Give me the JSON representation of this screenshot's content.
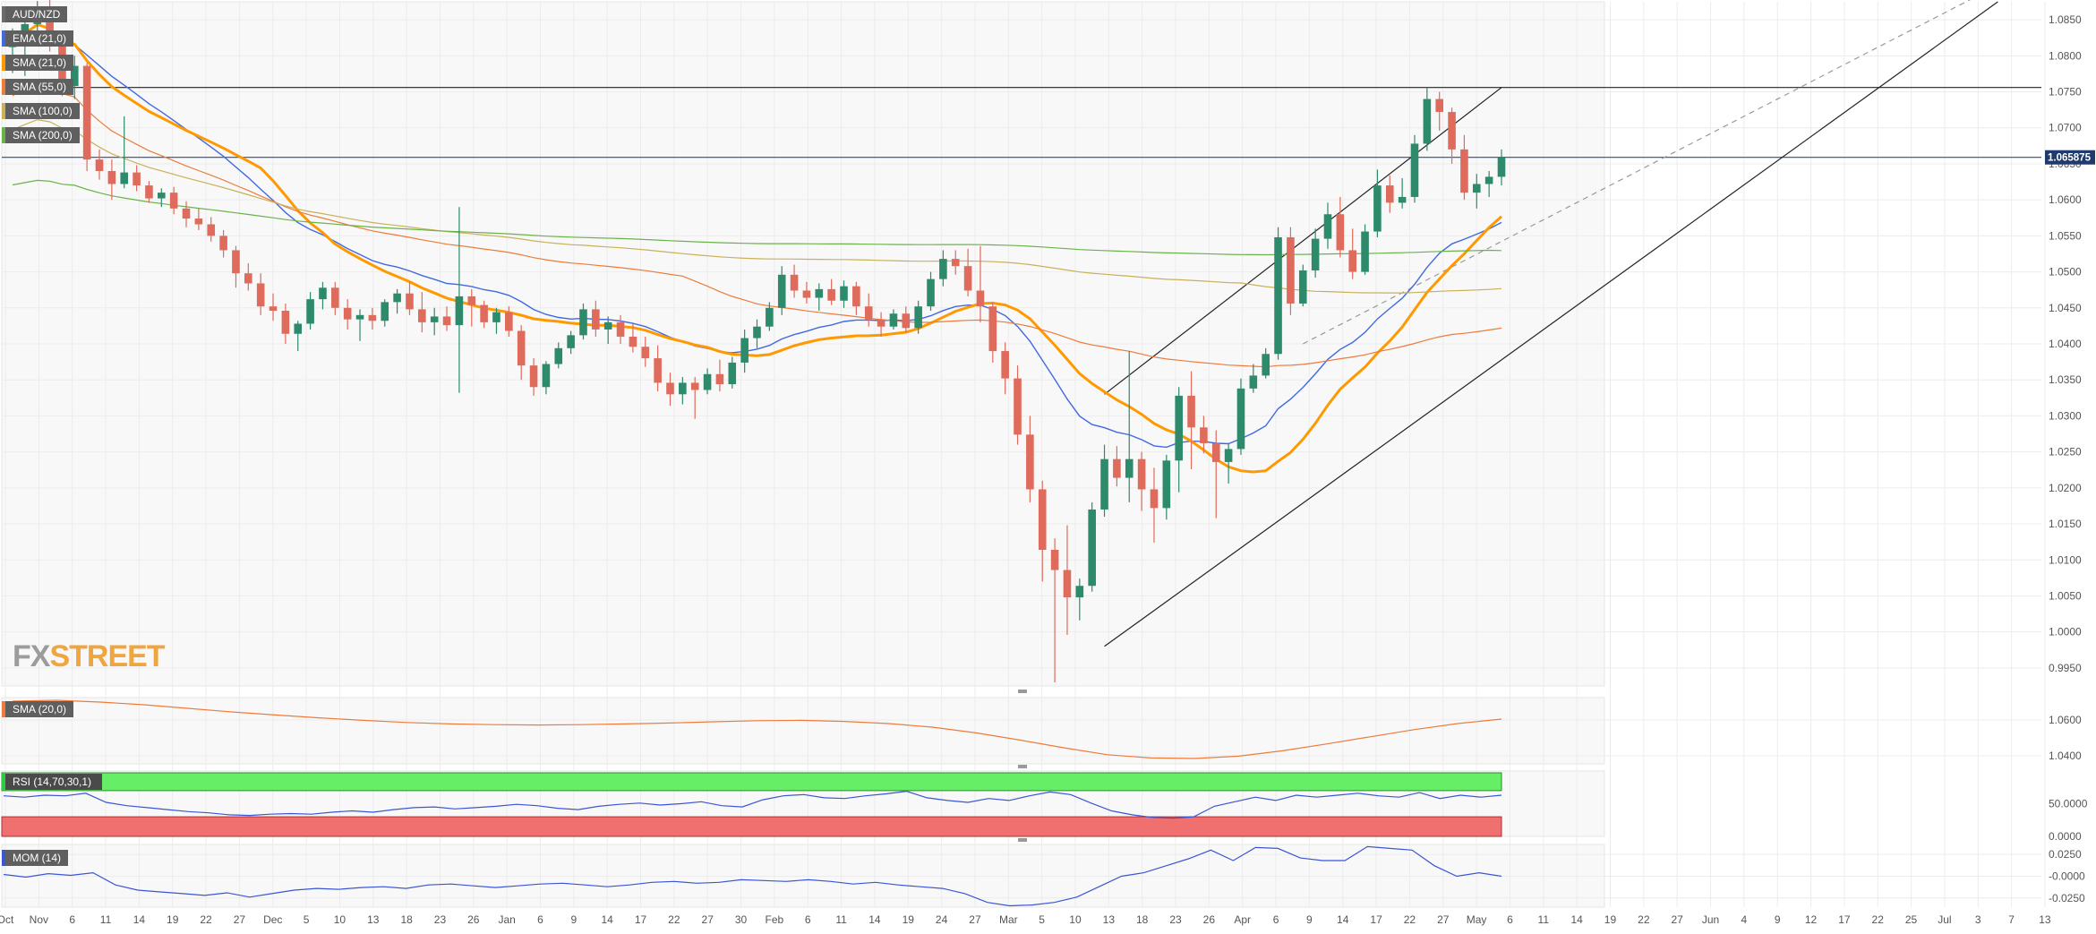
{
  "chart_data": [
    {
      "type": "candlestick",
      "symbol": "AUD/NZD",
      "last_price": "1.065875",
      "y_ticks": [
        "1.0850",
        "1.0800",
        "1.0750",
        "1.0700",
        "1.0650",
        "1.0600",
        "1.0550",
        "1.0500",
        "1.0450",
        "1.0400",
        "1.0350",
        "1.0300",
        "1.0250",
        "1.0200",
        "1.0150",
        "1.0100",
        "1.0050",
        "1.0000",
        "0.9950"
      ],
      "ylim": [
        0.9925,
        1.0875
      ],
      "x_ticks": [
        "Oct",
        "Nov",
        "6",
        "11",
        "14",
        "19",
        "22",
        "27",
        "Dec",
        "5",
        "10",
        "13",
        "18",
        "23",
        "26",
        "Jan",
        "6",
        "9",
        "14",
        "17",
        "22",
        "27",
        "30",
        "Feb",
        "6",
        "11",
        "14",
        "19",
        "24",
        "27",
        "Mar",
        "5",
        "10",
        "13",
        "18",
        "23",
        "26",
        "Apr",
        "6",
        "9",
        "14",
        "17",
        "22",
        "27",
        "May",
        "6",
        "11",
        "14",
        "19",
        "22",
        "27",
        "Jun",
        "4",
        "9",
        "12",
        "17",
        "22",
        "25",
        "Jul",
        "3",
        "7",
        "13"
      ],
      "indicators": [
        {
          "name": "EMA (21,0)",
          "color": "#4169e1"
        },
        {
          "name": "SMA (21,0)",
          "color": "#ff9900"
        },
        {
          "name": "SMA (55,0)",
          "color": "#ee7b3a"
        },
        {
          "name": "SMA (100,0)",
          "color": "#c9b05a"
        },
        {
          "name": "SMA (200,0)",
          "color": "#6ab34a"
        }
      ],
      "horizontal_levels": [
        1.0756,
        1.0659
      ],
      "candles": [
        [
          1.0812,
          1.0838,
          1.0776,
          1.0818
        ],
        [
          1.0818,
          1.0856,
          1.0772,
          1.0844
        ],
        [
          1.0844,
          1.0876,
          1.0822,
          1.0868
        ],
        [
          1.0868,
          1.0878,
          1.0806,
          1.0822
        ],
        [
          1.0822,
          1.083,
          1.0744,
          1.0758
        ],
        [
          1.0758,
          1.08,
          1.074,
          1.0786
        ],
        [
          1.0786,
          1.079,
          1.064,
          1.0656
        ],
        [
          1.0656,
          1.067,
          1.0628,
          1.064
        ],
        [
          1.064,
          1.0656,
          1.06,
          1.0622
        ],
        [
          1.0622,
          1.0716,
          1.0616,
          1.0638
        ],
        [
          1.0638,
          1.0648,
          1.0612,
          1.062
        ],
        [
          1.062,
          1.0626,
          1.0596,
          1.0602
        ],
        [
          1.0602,
          1.0616,
          1.059,
          1.061
        ],
        [
          1.061,
          1.0618,
          1.058,
          1.0588
        ],
        [
          1.0588,
          1.0598,
          1.0562,
          1.0574
        ],
        [
          1.0574,
          1.0588,
          1.0558,
          1.0566
        ],
        [
          1.0566,
          1.0576,
          1.0542,
          1.055
        ],
        [
          1.055,
          1.0558,
          1.052,
          1.053
        ],
        [
          1.053,
          1.0536,
          1.0478,
          1.0498
        ],
        [
          1.0498,
          1.0512,
          1.0474,
          1.0484
        ],
        [
          1.0484,
          1.0498,
          1.044,
          1.0452
        ],
        [
          1.0452,
          1.047,
          1.0432,
          1.0446
        ],
        [
          1.0446,
          1.0456,
          1.04,
          1.0414
        ],
        [
          1.0414,
          1.0432,
          1.039,
          1.0428
        ],
        [
          1.0428,
          1.0472,
          1.042,
          1.0462
        ],
        [
          1.0462,
          1.0486,
          1.0448,
          1.0478
        ],
        [
          1.0478,
          1.0486,
          1.044,
          1.045
        ],
        [
          1.045,
          1.0462,
          1.042,
          1.0434
        ],
        [
          1.0434,
          1.0448,
          1.0404,
          1.044
        ],
        [
          1.044,
          1.045,
          1.042,
          1.0432
        ],
        [
          1.0432,
          1.0462,
          1.0424,
          1.0458
        ],
        [
          1.0458,
          1.0476,
          1.0442,
          1.047
        ],
        [
          1.047,
          1.0486,
          1.044,
          1.0448
        ],
        [
          1.0448,
          1.0472,
          1.0416,
          1.043
        ],
        [
          1.043,
          1.045,
          1.0412,
          1.0438
        ],
        [
          1.0438,
          1.0452,
          1.0418,
          1.0426
        ],
        [
          1.0426,
          1.059,
          1.0332,
          1.0466
        ],
        [
          1.0466,
          1.0476,
          1.0424,
          1.0454
        ],
        [
          1.0454,
          1.046,
          1.0422,
          1.043
        ],
        [
          1.043,
          1.045,
          1.0414,
          1.0444
        ],
        [
          1.0444,
          1.0452,
          1.041,
          1.0418
        ],
        [
          1.0418,
          1.0426,
          1.035,
          1.037
        ],
        [
          1.037,
          1.038,
          1.0328,
          1.034
        ],
        [
          1.034,
          1.0376,
          1.033,
          1.0372
        ],
        [
          1.0372,
          1.0402,
          1.0366,
          1.0394
        ],
        [
          1.0394,
          1.0418,
          1.0386,
          1.0412
        ],
        [
          1.0412,
          1.0456,
          1.0406,
          1.0448
        ],
        [
          1.0448,
          1.046,
          1.041,
          1.042
        ],
        [
          1.042,
          1.0438,
          1.04,
          1.043
        ],
        [
          1.043,
          1.044,
          1.04,
          1.041
        ],
        [
          1.041,
          1.0428,
          1.0388,
          1.0396
        ],
        [
          1.0396,
          1.041,
          1.0368,
          1.038
        ],
        [
          1.038,
          1.0398,
          1.0334,
          1.0346
        ],
        [
          1.0346,
          1.036,
          1.0314,
          1.033
        ],
        [
          1.033,
          1.0354,
          1.0316,
          1.0346
        ],
        [
          1.0346,
          1.0354,
          1.0296,
          1.0336
        ],
        [
          1.0336,
          1.0366,
          1.033,
          1.0358
        ],
        [
          1.0358,
          1.0378,
          1.0334,
          1.0344
        ],
        [
          1.0344,
          1.0382,
          1.0338,
          1.0374
        ],
        [
          1.0374,
          1.042,
          1.036,
          1.0408
        ],
        [
          1.0408,
          1.0434,
          1.0394,
          1.0424
        ],
        [
          1.0424,
          1.0458,
          1.0418,
          1.045
        ],
        [
          1.045,
          1.0508,
          1.044,
          1.0496
        ],
        [
          1.0496,
          1.051,
          1.0464,
          1.0474
        ],
        [
          1.0474,
          1.0486,
          1.0456,
          1.0464
        ],
        [
          1.0464,
          1.0484,
          1.0446,
          1.0476
        ],
        [
          1.0476,
          1.049,
          1.0454,
          1.046
        ],
        [
          1.046,
          1.0488,
          1.045,
          1.048
        ],
        [
          1.048,
          1.0486,
          1.044,
          1.0452
        ],
        [
          1.0452,
          1.047,
          1.0424,
          1.0434
        ],
        [
          1.0434,
          1.0444,
          1.041,
          1.0424
        ],
        [
          1.0424,
          1.0448,
          1.042,
          1.0442
        ],
        [
          1.0442,
          1.0452,
          1.0416,
          1.0422
        ],
        [
          1.0422,
          1.046,
          1.0414,
          1.0452
        ],
        [
          1.0452,
          1.05,
          1.0446,
          1.049
        ],
        [
          1.049,
          1.053,
          1.048,
          1.0518
        ],
        [
          1.0518,
          1.053,
          1.0496,
          1.0508
        ],
        [
          1.0508,
          1.0532,
          1.0466,
          1.0474
        ],
        [
          1.0474,
          1.0536,
          1.043,
          1.0452
        ],
        [
          1.0452,
          1.0458,
          1.0374,
          1.039
        ],
        [
          1.039,
          1.0402,
          1.033,
          1.0352
        ],
        [
          1.0352,
          1.037,
          1.026,
          1.0274
        ],
        [
          1.0274,
          1.03,
          1.018,
          1.0198
        ],
        [
          1.0198,
          1.021,
          1.007,
          1.0114
        ],
        [
          1.0114,
          1.013,
          0.993,
          1.0086
        ],
        [
          1.0086,
          1.0148,
          0.9996,
          1.0048
        ],
        [
          1.0048,
          1.0074,
          1.0016,
          1.0064
        ],
        [
          1.0064,
          1.018,
          1.0056,
          1.017
        ],
        [
          1.017,
          1.026,
          1.016,
          1.024
        ],
        [
          1.024,
          1.0258,
          1.0202,
          1.0214
        ],
        [
          1.0214,
          1.039,
          1.018,
          1.024
        ],
        [
          1.024,
          1.025,
          1.0168,
          1.0198
        ],
        [
          1.0198,
          1.0228,
          1.0124,
          1.0172
        ],
        [
          1.0172,
          1.0246,
          1.0156,
          1.0238
        ],
        [
          1.0238,
          1.034,
          1.0194,
          1.0328
        ],
        [
          1.0328,
          1.0362,
          1.0226,
          1.0284
        ],
        [
          1.0284,
          1.03,
          1.0248,
          1.0262
        ],
        [
          1.0262,
          1.028,
          1.0158,
          1.0236
        ],
        [
          1.0236,
          1.0262,
          1.0206,
          1.0254
        ],
        [
          1.0254,
          1.0352,
          1.0246,
          1.0338
        ],
        [
          1.0338,
          1.0372,
          1.0332,
          1.0356
        ],
        [
          1.0356,
          1.0394,
          1.0352,
          1.0386
        ],
        [
          1.0386,
          1.0562,
          1.0378,
          1.0548
        ],
        [
          1.0548,
          1.0562,
          1.044,
          1.0456
        ],
        [
          1.0456,
          1.051,
          1.0452,
          1.0502
        ],
        [
          1.0502,
          1.056,
          1.0492,
          1.0546
        ],
        [
          1.0546,
          1.0596,
          1.0532,
          1.058
        ],
        [
          1.058,
          1.0604,
          1.052,
          1.053
        ],
        [
          1.053,
          1.056,
          1.049,
          1.05
        ],
        [
          1.05,
          1.0566,
          1.0496,
          1.0556
        ],
        [
          1.0556,
          1.0642,
          1.0548,
          1.062
        ],
        [
          1.062,
          1.0634,
          1.0582,
          1.0596
        ],
        [
          1.0596,
          1.063,
          1.0588,
          1.0604
        ],
        [
          1.0604,
          1.069,
          1.0596,
          1.0678
        ],
        [
          1.0678,
          1.0756,
          1.0668,
          1.074
        ],
        [
          1.074,
          1.075,
          1.0696,
          1.0722
        ],
        [
          1.0722,
          1.0728,
          1.065,
          1.067
        ],
        [
          1.067,
          1.069,
          1.06,
          1.061
        ],
        [
          1.061,
          1.0636,
          1.0588,
          1.0622
        ],
        [
          1.0622,
          1.064,
          1.0604,
          1.0632
        ],
        [
          1.0632,
          1.067,
          1.062,
          1.0659
        ]
      ]
    },
    {
      "type": "line",
      "name": "SMA (20,0)",
      "y_ticks": [
        "1.0600",
        "1.0400"
      ],
      "ylim": [
        1.0355,
        1.0725
      ],
      "values": [
        1.0705,
        1.071,
        1.07,
        1.0685,
        1.0665,
        1.0645,
        1.0628,
        1.0612,
        1.0598,
        1.0586,
        1.0578,
        1.0574,
        1.0572,
        1.0574,
        1.0578,
        1.0583,
        1.059,
        1.0596,
        1.0598,
        1.0592,
        1.058,
        1.056,
        1.0528,
        1.0488,
        1.0445,
        1.0406,
        1.0388,
        1.0385,
        1.0398,
        1.0428,
        1.0466,
        1.0506,
        1.0546,
        1.058,
        1.0605
      ]
    },
    {
      "type": "line",
      "name": "RSI (14,70,30,1)",
      "y_ticks": [
        "50.0000",
        "0.0000"
      ],
      "ylim": [
        0,
        100
      ],
      "overbought": 70,
      "oversold": 30,
      "values": [
        62,
        60,
        63,
        62,
        66,
        52,
        47,
        44,
        41,
        38,
        36,
        33,
        32,
        34,
        35,
        34,
        37,
        39,
        37,
        41,
        44,
        45,
        42,
        44,
        46,
        49,
        47,
        43,
        41,
        46,
        49,
        51,
        48,
        50,
        53,
        47,
        45,
        56,
        62,
        64,
        59,
        58,
        62,
        65,
        69,
        59,
        55,
        52,
        58,
        55,
        62,
        68,
        64,
        51,
        39,
        33,
        29,
        28,
        30,
        46,
        53,
        60,
        55,
        63,
        60,
        63,
        66,
        62,
        60,
        67,
        58,
        63,
        60,
        63
      ]
    },
    {
      "type": "line",
      "name": "MOM (14)",
      "y_ticks": [
        "0.0250",
        "-0.0000",
        "-0.0250"
      ],
      "ylim": [
        -0.0355,
        0.0365
      ],
      "values": [
        0.002,
        -0.001,
        0.003,
        0.001,
        0.004,
        -0.01,
        -0.016,
        -0.018,
        -0.02,
        -0.022,
        -0.019,
        -0.024,
        -0.02,
        -0.016,
        -0.014,
        -0.015,
        -0.013,
        -0.012,
        -0.014,
        -0.01,
        -0.009,
        -0.011,
        -0.013,
        -0.011,
        -0.009,
        -0.008,
        -0.01,
        -0.012,
        -0.01,
        -0.007,
        -0.006,
        -0.008,
        -0.007,
        -0.004,
        -0.005,
        -0.006,
        -0.004,
        -0.006,
        -0.009,
        -0.007,
        -0.01,
        -0.012,
        -0.014,
        -0.02,
        -0.03,
        -0.034,
        -0.033,
        -0.03,
        -0.024,
        -0.012,
        0.0,
        0.004,
        0.012,
        0.02,
        0.03,
        0.018,
        0.033,
        0.032,
        0.021,
        0.018,
        0.018,
        0.034,
        0.032,
        0.03,
        0.012,
        0.0,
        0.004,
        0.0
      ]
    }
  ],
  "branding": {
    "logo_fx": "FX",
    "logo_street": "STREET"
  },
  "colors": {
    "bullish": "#2d8a6b",
    "bearish": "#de6b5b",
    "rsi_overbought_band": "#66ee66",
    "rsi_oversold_band": "#f07070",
    "price_label_bg": "#1f3a6e"
  }
}
